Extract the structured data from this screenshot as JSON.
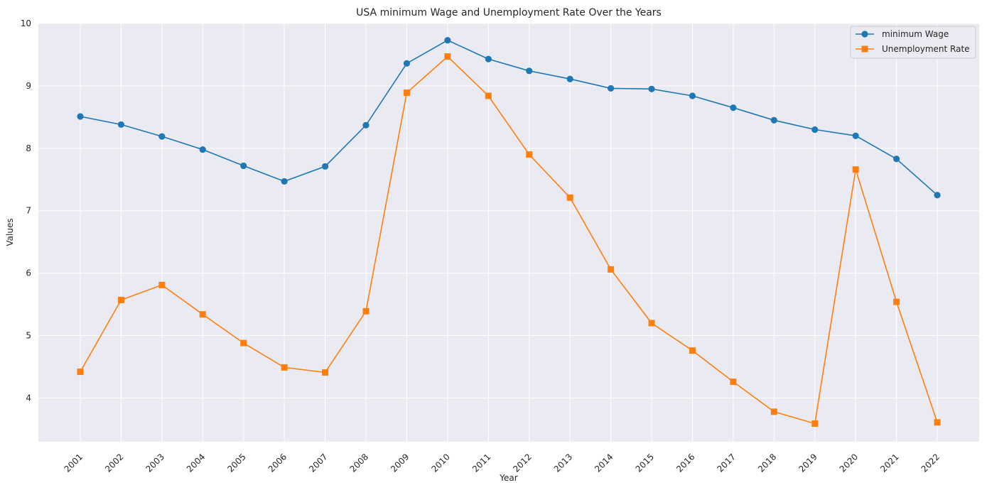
{
  "chart_data": {
    "type": "line",
    "title": "USA minimum Wage and Unemployment Rate Over the Years",
    "xlabel": "Year",
    "ylabel": "Values",
    "x": [
      "2001",
      "2002",
      "2003",
      "2004",
      "2005",
      "2006",
      "2007",
      "2008",
      "2009",
      "2010",
      "2011",
      "2012",
      "2013",
      "2014",
      "2015",
      "2016",
      "2017",
      "2018",
      "2019",
      "2020",
      "2021",
      "2022"
    ],
    "ylim": [
      3.3,
      10.0
    ],
    "yticks": [
      4,
      5,
      6,
      7,
      8,
      9,
      10
    ],
    "grid": true,
    "legend_position": "top-right",
    "series": [
      {
        "name": "minimum Wage",
        "color": "#1f77b4",
        "marker": "circle",
        "values": [
          8.51,
          8.38,
          8.19,
          7.98,
          7.72,
          7.47,
          7.71,
          8.37,
          9.36,
          9.73,
          9.43,
          9.24,
          9.11,
          8.96,
          8.95,
          8.84,
          8.65,
          8.45,
          8.3,
          8.2,
          7.83,
          7.25
        ]
      },
      {
        "name": "Unemployment Rate",
        "color": "#ff7f0e",
        "marker": "square",
        "values": [
          4.42,
          5.57,
          5.81,
          5.34,
          4.88,
          4.49,
          4.41,
          5.39,
          8.89,
          9.47,
          8.84,
          7.9,
          7.21,
          6.06,
          5.2,
          4.76,
          4.26,
          3.78,
          3.59,
          7.66,
          5.54,
          3.61
        ]
      }
    ]
  }
}
